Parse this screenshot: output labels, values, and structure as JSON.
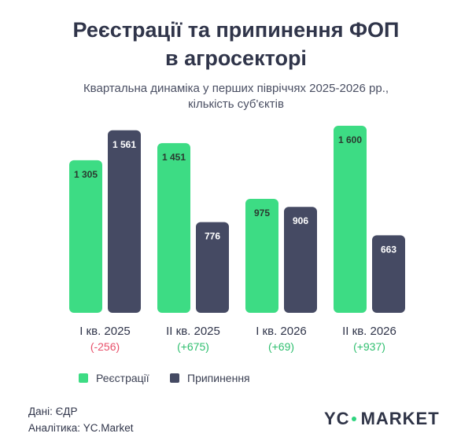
{
  "chart_data": {
    "type": "bar",
    "title_line1": "Реєстрації та припинення ФОП",
    "title_line2": "в агросекторі",
    "subtitle_line1": "Квартальна динаміка у перших півріччях 2025-2026 рр.,",
    "subtitle_line2": "кількість суб'єктів",
    "categories": [
      "I кв. 2025",
      "II кв. 2025",
      "I кв. 2026",
      "II кв. 2026"
    ],
    "differences": [
      "(-256)",
      "(+675)",
      "(+69)",
      "(+937)"
    ],
    "difference_values": [
      -256,
      675,
      69,
      937
    ],
    "value_labels": {
      "registrations": [
        "1 305",
        "1 451",
        "975",
        "1 600"
      ],
      "terminations": [
        "1 561",
        "776",
        "906",
        "663"
      ]
    },
    "series": [
      {
        "name": "Реєстрації",
        "values": [
          1305,
          1451,
          975,
          1600
        ],
        "color": "#3ddc84"
      },
      {
        "name": "Припинення",
        "values": [
          1561,
          776,
          906,
          663
        ],
        "color": "#454a63"
      }
    ],
    "ylim": [
      0,
      1600
    ],
    "grid": false,
    "legend_position": "bottom"
  },
  "colors": {
    "positive": "#2fbf6f",
    "negative": "#e8506a"
  },
  "footer": {
    "source": "Дані: ЄДР",
    "analytics": "Аналітика: YC.Market"
  },
  "logo": {
    "part1": "YC",
    "part2": "MARKET"
  }
}
